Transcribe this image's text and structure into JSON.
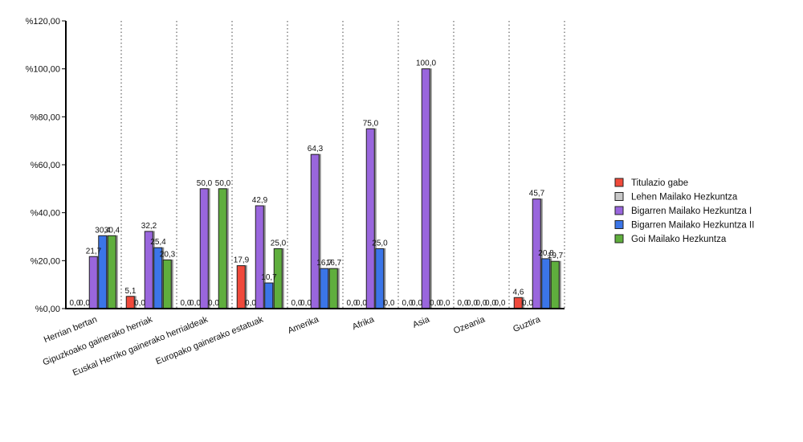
{
  "chart_data": {
    "type": "bar",
    "categories": [
      "Herrian bertan",
      "Gipuzkoako gainerako herriak",
      "Euskal Herriko gainerako herrialdeak",
      "Europako gainerako estatuak",
      "Amerika",
      "Afrika",
      "Asia",
      "Ozeania",
      "Guztira"
    ],
    "series": [
      {
        "name": "Titulazio gabe",
        "color": "#f04a3a",
        "values": [
          0.0,
          5.1,
          0.0,
          17.9,
          0.0,
          0.0,
          0.0,
          0.0,
          4.6
        ],
        "labels": [
          "0,0",
          "5,1",
          "0,0",
          "17,9",
          "0,0",
          "0,0",
          "0,0",
          "0,0",
          "4,6"
        ]
      },
      {
        "name": "Lehen Mailako Hezkuntza",
        "color": "#c8c8c8",
        "values": [
          0.0,
          0.0,
          0.0,
          0.0,
          0.0,
          0.0,
          0.0,
          0.0,
          0.0
        ],
        "labels": [
          "0,0",
          "0,0",
          "0,0",
          "0,0",
          "0,0",
          "0,0",
          "0,0",
          "0,0",
          "0,0"
        ]
      },
      {
        "name": "Bigarren Mailako Hezkuntza I",
        "color": "#9966dd",
        "values": [
          21.7,
          32.2,
          50.0,
          42.9,
          64.3,
          75.0,
          100.0,
          0.0,
          45.7
        ],
        "labels": [
          "21,7",
          "32,2",
          "50,0",
          "42,9",
          "64,3",
          "75,0",
          "100,0",
          "0,0",
          "45,7"
        ]
      },
      {
        "name": "Bigarren Mailako Hezkuntza II",
        "color": "#3a75e8",
        "values": [
          30.4,
          25.4,
          0.0,
          10.7,
          16.7,
          25.0,
          0.0,
          0.0,
          20.8
        ],
        "labels": [
          "30,4",
          "25,4",
          "0,0",
          "10,7",
          "16,7",
          "25,0",
          "0,0",
          "0,0",
          "20,8"
        ]
      },
      {
        "name": "Goi Mailako Hezkuntza",
        "color": "#5fae3c",
        "values": [
          30.4,
          20.3,
          50.0,
          25.0,
          16.7,
          0.0,
          0.0,
          0.0,
          19.7
        ],
        "labels": [
          "30,4",
          "20,3",
          "50,0",
          "25,0",
          "16,7",
          "0,0",
          "0,0",
          "0,0",
          "19,7"
        ]
      }
    ],
    "y_ticks": [
      "%0,00",
      "%20,00",
      "%40,00",
      "%60,00",
      "%80,00",
      "%100,00",
      "%120,00"
    ],
    "ylim": [
      0,
      120
    ],
    "title": "",
    "xlabel": "",
    "ylabel": "",
    "grid": "vertical dotted lines between categories",
    "legend_position": "right"
  }
}
